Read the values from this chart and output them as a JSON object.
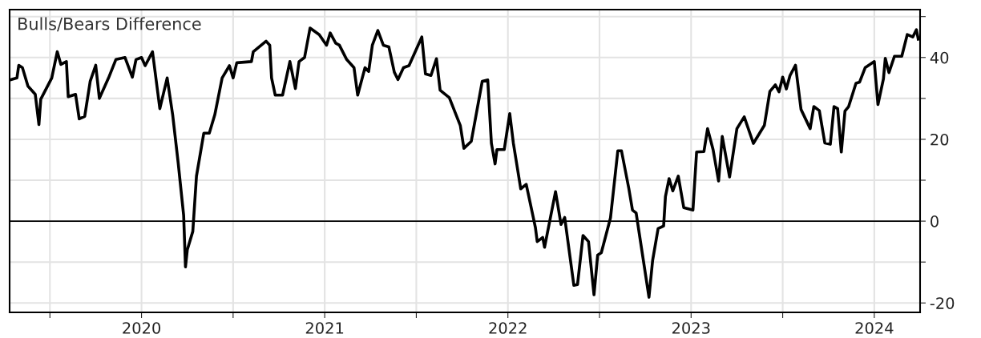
{
  "chart_data": {
    "type": "line",
    "title": "Bulls/Bears Difference",
    "x": [
      2019.29,
      2019.32,
      2019.33,
      2019.35,
      2019.38,
      2019.42,
      2019.44,
      2019.45,
      2019.51,
      2019.54,
      2019.56,
      2019.59,
      2019.6,
      2019.64,
      2019.66,
      2019.69,
      2019.72,
      2019.75,
      2019.77,
      2019.82,
      2019.86,
      2019.91,
      2019.95,
      2019.97,
      2020.0,
      2020.02,
      2020.06,
      2020.1,
      2020.14,
      2020.17,
      2020.2,
      2020.23,
      2020.24,
      2020.25,
      2020.28,
      2020.3,
      2020.34,
      2020.37,
      2020.4,
      2020.44,
      2020.48,
      2020.5,
      2020.52,
      2020.6,
      2020.61,
      2020.68,
      2020.7,
      2020.71,
      2020.73,
      2020.77,
      2020.81,
      2020.84,
      2020.86,
      2020.89,
      2020.92,
      2020.97,
      2021.01,
      2021.03,
      2021.06,
      2021.08,
      2021.12,
      2021.16,
      2021.18,
      2021.22,
      2021.24,
      2021.26,
      2021.29,
      2021.32,
      2021.35,
      2021.38,
      2021.4,
      2021.43,
      2021.46,
      2021.53,
      2021.55,
      2021.58,
      2021.61,
      2021.63,
      2021.68,
      2021.74,
      2021.76,
      2021.8,
      2021.86,
      2021.89,
      2021.91,
      2021.93,
      2021.94,
      2021.98,
      2022.01,
      2022.03,
      2022.07,
      2022.1,
      2022.15,
      2022.16,
      2022.19,
      2022.2,
      2022.26,
      2022.29,
      2022.31,
      2022.36,
      2022.38,
      2022.41,
      2022.44,
      2022.47,
      2022.49,
      2022.51,
      2022.56,
      2022.6,
      2022.62,
      2022.66,
      2022.68,
      2022.7,
      2022.77,
      2022.79,
      2022.82,
      2022.85,
      2022.86,
      2022.88,
      2022.9,
      2022.93,
      2022.96,
      2023.01,
      2023.03,
      2023.07,
      2023.09,
      2023.12,
      2023.15,
      2023.17,
      2023.21,
      2023.25,
      2023.29,
      2023.34,
      2023.4,
      2023.43,
      2023.46,
      2023.48,
      2023.5,
      2023.52,
      2023.54,
      2023.57,
      2023.6,
      2023.65,
      2023.67,
      2023.7,
      2023.73,
      2023.76,
      2023.78,
      2023.8,
      2023.82,
      2023.84,
      2023.86,
      2023.9,
      2023.92,
      2023.95,
      2024.0,
      2024.02,
      2024.05,
      2024.06,
      2024.08,
      2024.11,
      2024.15,
      2024.18,
      2024.21,
      2024.23,
      2024.24
    ],
    "series": [
      {
        "color": "#000000",
        "values": [
          34.6,
          35,
          38.1,
          37.5,
          33,
          31,
          23.6,
          29.8,
          35,
          41.4,
          38.3,
          39,
          30.4,
          31,
          25,
          25.6,
          34.2,
          38.1,
          30,
          35,
          39.5,
          40,
          35.2,
          39.5,
          40,
          38,
          41.4,
          27.5,
          35,
          26,
          14.3,
          1.4,
          -11.2,
          -7,
          -2.5,
          11,
          21.5,
          21.5,
          26,
          35,
          38,
          35,
          38.7,
          39,
          41.4,
          44,
          43,
          35,
          30.8,
          30.8,
          39,
          32.4,
          39,
          40,
          47.2,
          45.6,
          43,
          46,
          43.5,
          43,
          39.5,
          37.5,
          30.8,
          37.5,
          36.6,
          43,
          46.6,
          43,
          42.6,
          36.4,
          34.6,
          37.5,
          38,
          45,
          36,
          35.6,
          39.7,
          32,
          30.2,
          23.4,
          17.8,
          19.5,
          34.2,
          34.5,
          19,
          14,
          17.5,
          17.5,
          26.3,
          19,
          7.9,
          9,
          -1.5,
          -5,
          -4,
          -6.4,
          7.2,
          -0.8,
          0.9,
          -15.7,
          -15.5,
          -3.5,
          -5,
          -18,
          -8.3,
          -7.7,
          0.8,
          17.2,
          17.2,
          8,
          2.7,
          2,
          -18.6,
          -9.6,
          -1.8,
          -1.2,
          6,
          10.4,
          7.4,
          11,
          3.3,
          2.7,
          16.9,
          17,
          22.6,
          17.5,
          9.8,
          20.7,
          10.8,
          22.6,
          25.5,
          19,
          23.4,
          31.7,
          33.3,
          31.6,
          35.2,
          32.3,
          35.6,
          38.1,
          27.3,
          22.6,
          28,
          27,
          19.1,
          18.8,
          28,
          27.5,
          16.9,
          26.9,
          28,
          33.7,
          34,
          37.5,
          39,
          28.5,
          34.8,
          39.8,
          36.3,
          40.3,
          40.3,
          45.6,
          45,
          46.8,
          44.5
        ]
      }
    ],
    "xlim": [
      2019.28,
      2024.25
    ],
    "xticks": [
      {
        "value": 2019.5,
        "label": null
      },
      2020,
      {
        "value": 2020.5,
        "label": null
      },
      2021,
      {
        "value": 2021.5,
        "label": null
      },
      2022,
      {
        "value": 2022.5,
        "label": null
      },
      2023,
      {
        "value": 2023.5,
        "label": null
      },
      2024
    ],
    "ylim": [
      -22.3,
      51.7
    ],
    "yticks": [
      -20,
      {
        "value": -10,
        "label": null
      },
      0,
      {
        "value": 10,
        "label": null
      },
      20,
      {
        "value": 30,
        "label": null
      },
      40,
      {
        "value": 50,
        "label": null
      }
    ],
    "ref_lines": [
      {
        "axis": "y",
        "value": 0,
        "color": "#000000"
      }
    ],
    "grid": true,
    "legend": false,
    "marker": "none",
    "line_style": "solid"
  }
}
